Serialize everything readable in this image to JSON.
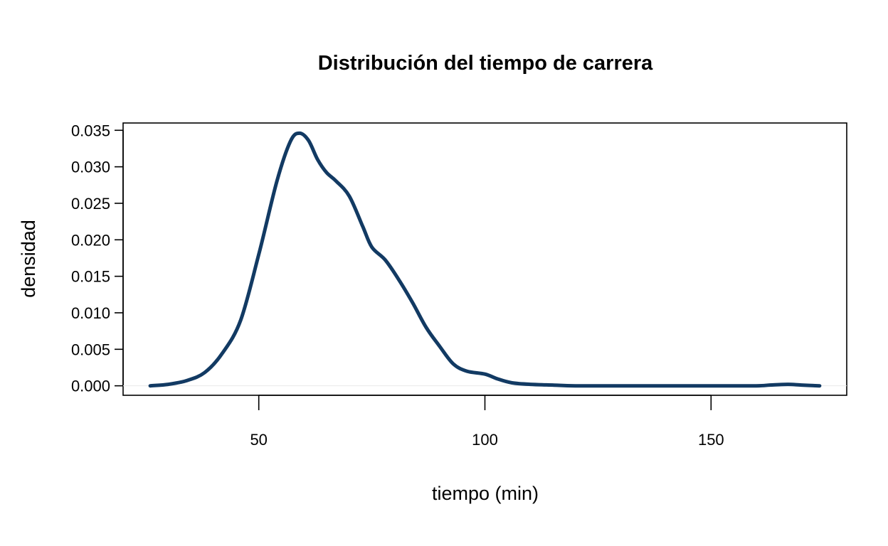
{
  "chart_data": {
    "type": "line",
    "title": "Distribución del tiempo de carrera",
    "xlabel": "tiempo (min)",
    "ylabel": "densidad",
    "xlim": [
      20,
      180
    ],
    "ylim": [
      -0.0013,
      0.036
    ],
    "x_ticks": [
      50,
      100,
      150
    ],
    "x_tick_labels": [
      "50",
      "100",
      "150"
    ],
    "y_ticks": [
      0,
      0.005,
      0.01,
      0.015,
      0.02,
      0.025,
      0.03,
      0.035
    ],
    "y_tick_labels": [
      "0.000",
      "0.005",
      "0.010",
      "0.015",
      "0.020",
      "0.025",
      "0.030",
      "0.035"
    ],
    "grid": false,
    "legend": "none",
    "series": [
      {
        "color": "#123a63",
        "x": [
          26,
          30,
          34,
          38,
          42,
          46,
          50,
          54,
          57,
          59,
          61,
          63,
          65,
          67,
          70,
          73,
          75,
          78,
          81,
          84,
          87,
          90,
          93,
          96,
          100,
          103,
          106,
          110,
          115,
          120,
          130,
          140,
          150,
          160,
          163,
          167,
          170,
          174
        ],
        "values": [
          0.0,
          0.0002,
          0.0007,
          0.0018,
          0.0045,
          0.009,
          0.018,
          0.028,
          0.0335,
          0.0346,
          0.0336,
          0.031,
          0.0292,
          0.0281,
          0.026,
          0.0218,
          0.019,
          0.0172,
          0.0145,
          0.0114,
          0.008,
          0.0054,
          0.003,
          0.002,
          0.0016,
          0.0009,
          0.0004,
          0.0002,
          0.0001,
          0.0,
          0.0,
          0.0,
          0.0,
          0.0,
          0.0001,
          0.0002,
          0.0001,
          0.0
        ]
      }
    ]
  }
}
